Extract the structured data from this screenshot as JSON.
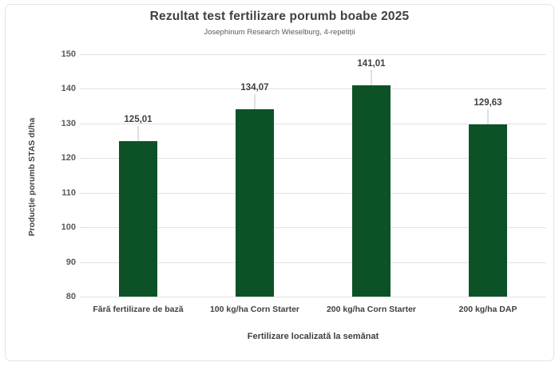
{
  "header": {
    "title": "Rezultat test fertilizare porumb boabe 2025",
    "subtitle": "Josephinum Research Wieselburg, 4-repetiții"
  },
  "chart_data": {
    "type": "bar",
    "title": "Rezultat test fertilizare porumb boabe 2025",
    "subtitle": "Josephinum Research Wieselburg, 4-repetiții",
    "categories": [
      "Fără fertilizare de bază",
      "100 kg/ha Corn Starter",
      "200 kg/ha Corn Starter",
      "200 kg/ha DAP"
    ],
    "values": [
      125.01,
      134.07,
      141.01,
      129.63
    ],
    "value_labels": [
      "125,01",
      "134,07",
      "141,01",
      "129,63"
    ],
    "xlabel": "Fertilizare localizată la semănat",
    "ylabel": "Producție porumb STAS dt/ha",
    "ylim": [
      80,
      150
    ],
    "ytick_step": 10,
    "ytick_labels": [
      "80",
      "90",
      "100",
      "110",
      "120",
      "130",
      "140",
      "150"
    ],
    "grid": true,
    "legend_position": "none",
    "bar_color": "#0d5226",
    "grid_color": "#e2e2e2",
    "leader_color": "#c0c0c0",
    "title_color": "#404040",
    "tick_color": "#595959"
  }
}
